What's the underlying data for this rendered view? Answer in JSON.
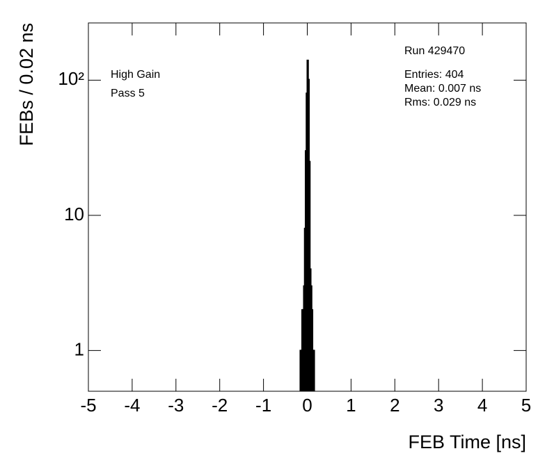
{
  "chart_data": {
    "type": "histogram",
    "xlabel": "FEB Time [ns]",
    "ylabel": "FEBs / 0.02 ns",
    "bins": [
      -0.16,
      -0.14,
      -0.12,
      -0.1,
      -0.08,
      -0.06,
      -0.04,
      -0.02,
      0,
      0.02,
      0.04,
      0.06,
      0.08,
      0.1,
      0.12,
      0.14,
      0.16
    ],
    "values": [
      1,
      1,
      2,
      2,
      3,
      8,
      30,
      80,
      140,
      101,
      25,
      4,
      3,
      2,
      1,
      1
    ],
    "color": "#000000",
    "xlim": [
      -5,
      5
    ],
    "xticks": [
      -5,
      -4,
      -3,
      -2,
      -1,
      0,
      1,
      2,
      3,
      4,
      5
    ],
    "ylim": [
      0.5,
      265
    ],
    "log_y": true,
    "yticks": [
      1,
      10,
      {
        "value": 100,
        "label": "10²"
      }
    ],
    "annotations": [
      "High Gain",
      "Pass 5"
    ],
    "stats": [
      "Run 429470",
      "Entries: 404",
      "Mean: 0.007 ns",
      "Rms: 0.029 ns"
    ]
  }
}
